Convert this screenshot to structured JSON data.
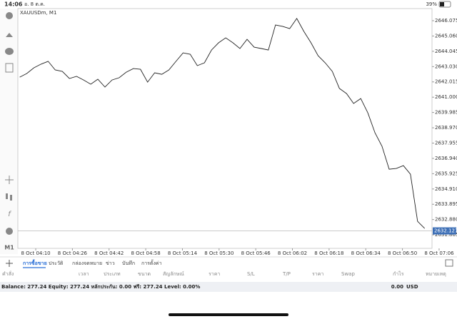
{
  "status": {
    "time": "14:06",
    "date": "อ. 8 ต.ค.",
    "battery": "39%"
  },
  "toolbar": {
    "timeframe": "M1"
  },
  "chart_data": {
    "type": "line",
    "title": "XAUUSDm, M1",
    "color": "#222222",
    "x": [
      243,
      246.1,
      249.2,
      252.3,
      255.4,
      258.5,
      261.6,
      264.7,
      267.8,
      270.9,
      274,
      277.1,
      280.2,
      283.3,
      286.4,
      289.5,
      292.6,
      295.7,
      298.8,
      301.9,
      305,
      308.1,
      311.2,
      314.3,
      317.4,
      320.5,
      323.6,
      326.7,
      329.8,
      332.9,
      336,
      339.1,
      342.2,
      345.3,
      348.4,
      351.5,
      354.6,
      357.7,
      360.8,
      363.9,
      367,
      370.1,
      373.2,
      376.3,
      379.4,
      382.5,
      385.6,
      388.7,
      391.8,
      394.9,
      398,
      401.1,
      404.2,
      407.3,
      410.4,
      413.5,
      416.6,
      419.7
    ],
    "values": [
      2642.33,
      2642.57,
      2642.95,
      2643.19,
      2643.38,
      2642.81,
      2642.71,
      2642.24,
      2642.38,
      2642.14,
      2641.86,
      2642.19,
      2641.67,
      2642.14,
      2642.29,
      2642.66,
      2642.9,
      2642.85,
      2642.0,
      2642.62,
      2642.52,
      2642.81,
      2643.38,
      2643.94,
      2643.85,
      2643.09,
      2643.28,
      2644.13,
      2644.61,
      2644.94,
      2644.61,
      2644.23,
      2644.84,
      2644.32,
      2644.23,
      2644.13,
      2645.79,
      2645.7,
      2645.55,
      2646.22,
      2645.36,
      2644.61,
      2643.75,
      2643.28,
      2642.71,
      2641.58,
      2641.24,
      2640.58,
      2640.91,
      2639.96,
      2638.64,
      2637.74,
      2636.22,
      2636.27,
      2636.46,
      2635.89,
      2632.76,
      2632.29
    ],
    "xlim": [
      242.2,
      422.9
    ],
    "xticks": [
      {
        "value": 250,
        "label": "8 Oct 04:10"
      },
      {
        "value": 266,
        "label": "8 Oct 04:26"
      },
      {
        "value": 282,
        "label": "8 Oct 04:42"
      },
      {
        "value": 298,
        "label": "8 Oct 04:58"
      },
      {
        "value": 314,
        "label": "8 Oct 05:14"
      },
      {
        "value": 330,
        "label": "8 Oct 05:30"
      },
      {
        "value": 346,
        "label": "8 Oct 05:46"
      },
      {
        "value": 362,
        "label": "8 Oct 06:02"
      },
      {
        "value": 378,
        "label": "8 Oct 06:18"
      },
      {
        "value": 394,
        "label": "8 Oct 06:34"
      },
      {
        "value": 410,
        "label": "8 Oct 06:50"
      },
      {
        "value": 426,
        "label": "8 Oct 07:06"
      }
    ],
    "ylim": [
      2630.97,
      2646.88
    ],
    "yticks": [
      2646.075,
      {
        "value": 2645.06,
        "label": "2645.060"
      },
      2644.045,
      {
        "value": 2643.03,
        "label": "2643.030"
      },
      2642.015,
      {
        "value": 2641,
        "label": "2641.000"
      },
      2639.985,
      {
        "value": 2638.97,
        "label": "2638.970"
      },
      2637.955,
      {
        "value": 2636.94,
        "label": "2636.940"
      },
      2635.925,
      {
        "value": 2634.91,
        "label": "2634.910"
      },
      2633.895,
      {
        "value": 2632.88,
        "label": "2632.880"
      },
      2631.865
    ],
    "current_price": 2632.127
  },
  "tabs": [
    "การซื้อขาย",
    "ประวัติ",
    "กล่องจดหมาย",
    "ข่าว",
    "บันทึก",
    "การตั้งค่า"
  ],
  "columns": [
    "คำสั่ง",
    "เวลา",
    "ประเภท",
    "ขนาด",
    "สัญลักษณ์",
    "ราคา",
    "S/L",
    "T/P",
    "ราคา",
    "Swap",
    "กำไร",
    "หมายเหตุ"
  ],
  "account": {
    "summary": "Balance: 277.24 Equity: 277.24 หลักประกัน: 0.00 ฟรี: 277.24 Level: 0.00%",
    "total": "0.00",
    "currency": "USD"
  }
}
